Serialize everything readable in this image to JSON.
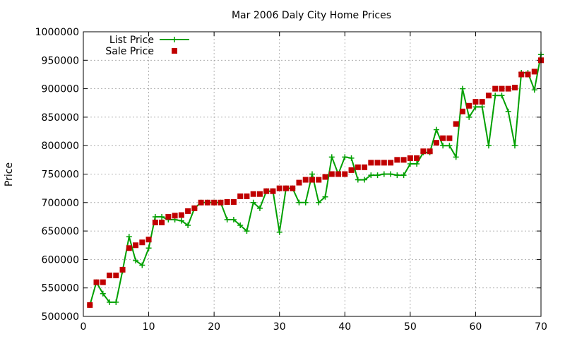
{
  "chart_data": {
    "type": "line",
    "title": "Mar 2006 Daly City Home Prices",
    "xlabel": "",
    "ylabel": "Price",
    "xlim": [
      0,
      70
    ],
    "ylim": [
      500000,
      1000000
    ],
    "x_ticks": [
      "0",
      "10",
      "20",
      "30",
      "40",
      "50",
      "60",
      "70"
    ],
    "y_ticks": [
      "500000",
      "550000",
      "600000",
      "650000",
      "700000",
      "750000",
      "800000",
      "850000",
      "900000",
      "950000",
      "1000000"
    ],
    "x_tick_values": [
      0,
      10,
      20,
      30,
      40,
      50,
      60,
      70
    ],
    "y_tick_values": [
      500000,
      550000,
      600000,
      650000,
      700000,
      750000,
      800000,
      850000,
      900000,
      950000,
      1000000
    ],
    "grid": true,
    "legend_position": "top-left",
    "series": [
      {
        "name": "List Price",
        "style": "line-with-plus-markers",
        "color": "#00a000",
        "x": [
          1,
          2,
          3,
          4,
          5,
          6,
          7,
          8,
          9,
          10,
          11,
          12,
          13,
          14,
          15,
          16,
          17,
          18,
          19,
          20,
          21,
          22,
          23,
          24,
          25,
          26,
          27,
          28,
          29,
          30,
          31,
          32,
          33,
          34,
          35,
          36,
          37,
          38,
          39,
          40,
          41,
          42,
          43,
          44,
          45,
          46,
          47,
          48,
          49,
          50,
          51,
          52,
          53,
          54,
          55,
          56,
          57,
          58,
          59,
          60,
          61,
          62,
          63,
          64,
          65,
          66,
          67,
          68,
          69,
          70
        ],
        "values": [
          520000,
          560000,
          540000,
          525000,
          525000,
          580000,
          640000,
          598000,
          590000,
          620000,
          675000,
          675000,
          670000,
          670000,
          668000,
          660000,
          690000,
          700000,
          700000,
          700000,
          700000,
          670000,
          670000,
          660000,
          650000,
          700000,
          690000,
          720000,
          720000,
          648000,
          725000,
          725000,
          700000,
          700000,
          750000,
          700000,
          710000,
          780000,
          750000,
          780000,
          778000,
          740000,
          740000,
          748000,
          748000,
          750000,
          750000,
          748000,
          748000,
          768000,
          768000,
          788000,
          788000,
          828000,
          800000,
          800000,
          780000,
          900000,
          850000,
          868000,
          868000,
          800000,
          888000,
          888000,
          860000,
          800000,
          928000,
          928000,
          898000,
          960000
        ]
      },
      {
        "name": "Sale Price",
        "style": "square-markers",
        "color": "#c00000",
        "x": [
          1,
          2,
          3,
          4,
          5,
          6,
          7,
          8,
          9,
          10,
          11,
          12,
          13,
          14,
          15,
          16,
          17,
          18,
          19,
          20,
          21,
          22,
          23,
          24,
          25,
          26,
          27,
          28,
          29,
          30,
          31,
          32,
          33,
          34,
          35,
          36,
          37,
          38,
          39,
          40,
          41,
          42,
          43,
          44,
          45,
          46,
          47,
          48,
          49,
          50,
          51,
          52,
          53,
          54,
          55,
          56,
          57,
          58,
          59,
          60,
          61,
          62,
          63,
          64,
          65,
          66,
          67,
          68,
          69,
          70
        ],
        "values": [
          520000,
          560000,
          560000,
          572000,
          572000,
          582000,
          620000,
          625000,
          630000,
          635000,
          665000,
          665000,
          675000,
          677000,
          678000,
          685000,
          690000,
          700000,
          700000,
          700000,
          700000,
          701000,
          701000,
          711000,
          711000,
          715000,
          715000,
          720000,
          720000,
          725000,
          725000,
          725000,
          735000,
          740000,
          740000,
          740000,
          745000,
          750000,
          750000,
          750000,
          757000,
          762000,
          762000,
          770000,
          770000,
          770000,
          770000,
          775000,
          775000,
          778000,
          778000,
          790000,
          790000,
          805000,
          813000,
          813000,
          838000,
          860000,
          870000,
          877000,
          877000,
          888000,
          900000,
          900000,
          900000,
          902000,
          925000,
          925000,
          930000,
          950000
        ]
      }
    ]
  }
}
